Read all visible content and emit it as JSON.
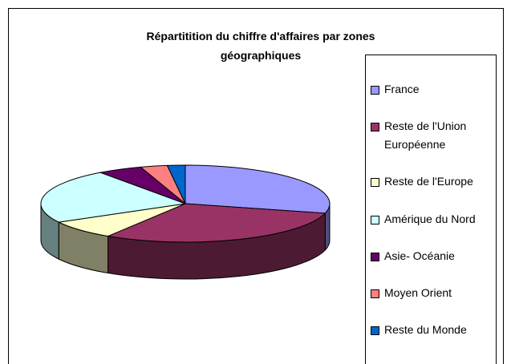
{
  "chart_data": {
    "type": "pie3d",
    "title": "Répartitition du chiffre d'affaires par zones géographiques",
    "categories": [
      "France",
      "Reste de l'Union Européenne",
      "Reste de l'Europe",
      "Amérique du Nord",
      "Asie- Océanie",
      "Moyen Orient",
      "Reste du Monde"
    ],
    "values": [
      29,
      30,
      8,
      23,
      5,
      3,
      2
    ],
    "colors": [
      "#9999ff",
      "#993366",
      "#ffffcc",
      "#ccffff",
      "#660066",
      "#ff8080",
      "#0066cc"
    ],
    "legend": "right"
  }
}
